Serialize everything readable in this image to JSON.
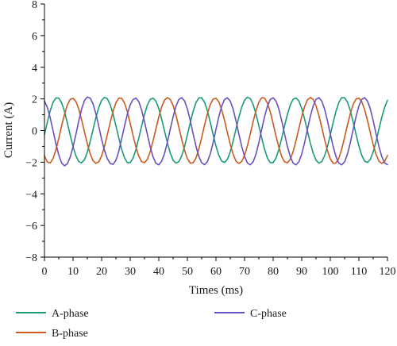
{
  "chart_data": {
    "type": "line",
    "xlabel": "Times (ms)",
    "ylabel": "Current (A)",
    "xlim": [
      0,
      120
    ],
    "ylim": [
      -8,
      8
    ],
    "x_ticks": [
      0,
      10,
      20,
      30,
      40,
      50,
      60,
      70,
      80,
      90,
      100,
      110,
      120
    ],
    "y_ticks": [
      -8,
      -6,
      -4,
      -2,
      0,
      2,
      4,
      6,
      8
    ],
    "x_tick_labels": [
      "0",
      "10",
      "20",
      "30",
      "40",
      "50",
      "60",
      "70",
      "80",
      "90",
      "100",
      "110",
      "120"
    ],
    "y_tick_labels": [
      "−8",
      "−6",
      "−4",
      "−2",
      "0",
      "2",
      "4",
      "6",
      "8"
    ],
    "grid": false,
    "legend_position": "below",
    "series": [
      {
        "name": "A-phase",
        "color": "#1a9a78",
        "x": [
          0,
          1,
          2,
          3,
          4,
          5,
          6,
          7,
          8,
          9,
          10,
          11,
          12,
          13,
          14,
          15,
          16,
          17,
          18,
          19,
          20,
          21,
          22,
          23,
          24,
          25,
          26,
          27,
          28,
          29,
          30,
          31,
          32,
          33,
          34,
          35,
          36,
          37,
          38,
          39,
          40,
          41,
          42,
          43,
          44,
          45,
          46,
          47,
          48,
          49,
          50,
          51,
          52,
          53,
          54,
          55,
          56,
          57,
          58,
          59,
          60,
          61,
          62,
          63,
          64,
          65,
          66,
          67,
          68,
          69,
          70,
          71,
          72,
          73,
          74,
          75,
          76,
          77,
          78,
          79,
          80,
          81,
          82,
          83,
          84,
          85,
          86,
          87,
          88,
          89,
          90,
          91,
          92,
          93,
          94,
          95,
          96,
          97,
          98,
          99,
          100,
          101,
          102,
          103,
          104,
          105,
          106,
          107,
          108,
          109,
          110,
          111,
          112,
          113,
          114,
          115,
          116,
          117,
          118,
          119,
          120
        ],
        "y": [
          -0.26,
          0.52,
          1.24,
          1.78,
          2.06,
          2.05,
          1.76,
          1.21,
          0.49,
          -0.29,
          -1.01,
          -1.6,
          -1.96,
          -2.04,
          -1.84,
          -1.36,
          -0.69,
          0.07,
          0.82,
          1.46,
          1.91,
          2.1,
          2.01,
          1.64,
          1.04,
          0.3,
          -0.47,
          -1.18,
          -1.73,
          -2.03,
          -2.03,
          -1.74,
          -1.2,
          -0.48,
          0.3,
          1.02,
          1.61,
          1.97,
          2.05,
          1.86,
          1.39,
          0.72,
          -0.03,
          -0.78,
          -1.42,
          -1.87,
          -2.06,
          -1.97,
          -1.61,
          -1.02,
          -0.28,
          0.5,
          1.21,
          1.76,
          2.06,
          2.07,
          1.79,
          1.25,
          0.53,
          -0.25,
          -0.98,
          -1.57,
          -1.93,
          -2.02,
          -1.82,
          -1.34,
          -0.67,
          0.09,
          0.84,
          1.47,
          1.92,
          2.11,
          2.02,
          1.65,
          1.05,
          0.31,
          -0.47,
          -1.18,
          -1.74,
          -2.03,
          -2.03,
          -1.74,
          -1.2,
          -0.48,
          0.3,
          1.03,
          1.62,
          1.98,
          2.06,
          1.87,
          1.4,
          0.73,
          -0.03,
          -0.78,
          -1.42,
          -1.87,
          -2.06,
          -1.97,
          -1.6,
          -1.01,
          -0.27,
          0.51,
          1.23,
          1.78,
          2.08,
          2.08,
          1.8,
          1.26,
          0.54,
          -0.24,
          -0.97,
          -1.56,
          -1.93,
          -2.02,
          -1.82,
          -1.35,
          -0.68,
          0.08,
          0.83,
          1.46,
          1.91
        ]
      },
      {
        "name": "B-phase",
        "color": "#cc5a1e",
        "x": [
          0,
          1,
          2,
          3,
          4,
          5,
          6,
          7,
          8,
          9,
          10,
          11,
          12,
          13,
          14,
          15,
          16,
          17,
          18,
          19,
          20,
          21,
          22,
          23,
          24,
          25,
          26,
          27,
          28,
          29,
          30,
          31,
          32,
          33,
          34,
          35,
          36,
          37,
          38,
          39,
          40,
          41,
          42,
          43,
          44,
          45,
          46,
          47,
          48,
          49,
          50,
          51,
          52,
          53,
          54,
          55,
          56,
          57,
          58,
          59,
          60,
          61,
          62,
          63,
          64,
          65,
          66,
          67,
          68,
          69,
          70,
          71,
          72,
          73,
          74,
          75,
          76,
          77,
          78,
          79,
          80,
          81,
          82,
          83,
          84,
          85,
          86,
          87,
          88,
          89,
          90,
          91,
          92,
          93,
          94,
          95,
          96,
          97,
          98,
          99,
          100,
          101,
          102,
          103,
          104,
          105,
          106,
          107,
          108,
          109,
          110,
          111,
          112,
          113,
          114,
          115,
          116,
          117,
          118,
          119,
          120
        ],
        "y": [
          -1.6,
          -1.99,
          -2.05,
          -1.78,
          -1.23,
          -0.5,
          0.29,
          1.02,
          1.61,
          1.97,
          2.04,
          1.84,
          1.36,
          0.68,
          -0.09,
          -0.84,
          -1.47,
          -1.91,
          -2.08,
          -1.98,
          -1.6,
          -1.0,
          -0.26,
          0.52,
          1.22,
          1.76,
          2.05,
          2.04,
          1.74,
          1.19,
          0.46,
          -0.32,
          -1.04,
          -1.62,
          -1.97,
          -2.03,
          -1.82,
          -1.33,
          -0.65,
          0.12,
          0.87,
          1.49,
          1.92,
          2.08,
          1.97,
          1.58,
          0.98,
          0.23,
          -0.55,
          -1.25,
          -1.78,
          -2.06,
          -2.04,
          -1.74,
          -1.18,
          -0.44,
          0.34,
          1.06,
          1.64,
          1.98,
          2.04,
          1.82,
          1.32,
          0.64,
          -0.13,
          -0.88,
          -1.5,
          -1.93,
          -2.08,
          -1.96,
          -1.57,
          -0.96,
          -0.22,
          0.56,
          1.26,
          1.79,
          2.07,
          2.05,
          1.74,
          1.18,
          0.44,
          -0.34,
          -1.06,
          -1.64,
          -1.98,
          -2.04,
          -1.82,
          -1.33,
          -0.64,
          0.13,
          0.88,
          1.51,
          1.94,
          2.09,
          1.97,
          1.57,
          0.96,
          0.21,
          -0.57,
          -1.27,
          -1.79,
          -2.07,
          -2.05,
          -1.74,
          -1.17,
          -0.43,
          0.35,
          1.07,
          1.65,
          1.99,
          2.05,
          1.82,
          1.33,
          0.64,
          -0.14,
          -0.89,
          -1.51,
          -1.93,
          -2.08,
          -1.96,
          -1.57
        ]
      },
      {
        "name": "C-phase",
        "color": "#6a4fbf",
        "x": [
          0,
          1,
          2,
          3,
          4,
          5,
          6,
          7,
          8,
          9,
          10,
          11,
          12,
          13,
          14,
          15,
          16,
          17,
          18,
          19,
          20,
          21,
          22,
          23,
          24,
          25,
          26,
          27,
          28,
          29,
          30,
          31,
          32,
          33,
          34,
          35,
          36,
          37,
          38,
          39,
          40,
          41,
          42,
          43,
          44,
          45,
          46,
          47,
          48,
          49,
          50,
          51,
          52,
          53,
          54,
          55,
          56,
          57,
          58,
          59,
          60,
          61,
          62,
          63,
          64,
          65,
          66,
          67,
          68,
          69,
          70,
          71,
          72,
          73,
          74,
          75,
          76,
          77,
          78,
          79,
          80,
          81,
          82,
          83,
          84,
          85,
          86,
          87,
          88,
          89,
          90,
          91,
          92,
          93,
          94,
          95,
          96,
          97,
          98,
          99,
          100,
          101,
          102,
          103,
          104,
          105,
          106,
          107,
          108,
          109,
          110,
          111,
          112,
          113,
          114,
          115,
          116,
          117,
          118,
          119,
          120
        ],
        "y": [
          1.86,
          1.47,
          0.81,
          0.0,
          -0.83,
          -1.55,
          -2.05,
          -2.23,
          -2.1,
          -1.68,
          -1.03,
          -0.24,
          0.6,
          1.36,
          1.9,
          2.12,
          2.05,
          1.68,
          1.05,
          0.27,
          -0.56,
          -1.27,
          -1.78,
          -2.08,
          -2.14,
          -1.88,
          -1.31,
          -0.53,
          0.28,
          1.04,
          1.63,
          1.96,
          2.05,
          1.83,
          1.29,
          0.56,
          -0.25,
          -1.03,
          -1.67,
          -2.07,
          -2.17,
          -1.94,
          -1.45,
          -0.74,
          0.08,
          0.87,
          1.53,
          1.96,
          2.08,
          1.88,
          1.37,
          0.63,
          -0.2,
          -0.99,
          -1.63,
          -2.04,
          -2.16,
          -1.97,
          -1.48,
          -0.76,
          0.08,
          0.88,
          1.54,
          1.96,
          2.07,
          1.86,
          1.36,
          0.62,
          -0.21,
          -1.0,
          -1.64,
          -2.05,
          -2.17,
          -1.98,
          -1.49,
          -0.77,
          0.08,
          0.88,
          1.54,
          1.96,
          2.07,
          1.87,
          1.36,
          0.62,
          -0.22,
          -1.01,
          -1.65,
          -2.06,
          -2.17,
          -1.98,
          -1.49,
          -0.77,
          0.08,
          0.88,
          1.55,
          1.97,
          2.08,
          1.87,
          1.36,
          0.62,
          -0.22,
          -1.01,
          -1.65,
          -2.06,
          -2.17,
          -1.98,
          -1.49,
          -0.77,
          0.08,
          0.88,
          1.55,
          1.97,
          2.08,
          1.87,
          1.37,
          0.63,
          -0.21,
          -1.0,
          -1.64,
          -2.05,
          -2.16
        ]
      }
    ]
  }
}
